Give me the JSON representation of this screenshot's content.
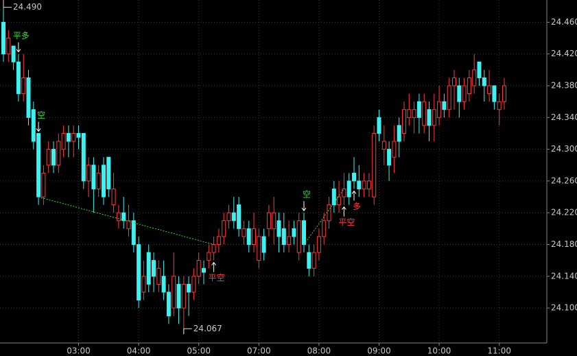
{
  "chart_data": {
    "type": "candlestick",
    "categories": [
      null,
      null,
      null,
      null,
      null,
      null,
      null,
      null,
      null,
      null,
      null,
      null,
      null,
      null,
      null,
      "03:00",
      null,
      null,
      null,
      null,
      null,
      null,
      null,
      null,
      null,
      null,
      null,
      "04:00",
      null,
      null,
      null,
      null,
      null,
      null,
      null,
      null,
      null,
      null,
      null,
      "05:00",
      null,
      null,
      null,
      null,
      null,
      null,
      null,
      null,
      null,
      null,
      null,
      "07:00",
      null,
      null,
      null,
      null,
      null,
      null,
      null,
      null,
      null,
      null,
      null,
      "08:00",
      null,
      null,
      null,
      null,
      null,
      null,
      null,
      null,
      null,
      null,
      null,
      "09:00",
      null,
      null,
      null,
      null,
      null,
      null,
      null,
      null,
      null,
      null,
      null,
      "10:00",
      null,
      null,
      null,
      null,
      null,
      null,
      null,
      null,
      null,
      null,
      null,
      "11:00",
      null
    ],
    "ohlc": [
      [
        24.46,
        24.49,
        24.41,
        24.42
      ],
      [
        24.42,
        24.45,
        24.41,
        24.44
      ],
      [
        24.43,
        24.43,
        24.4,
        24.41
      ],
      [
        24.41,
        24.42,
        24.36,
        24.37
      ],
      [
        24.37,
        24.42,
        24.36,
        24.39
      ],
      [
        24.39,
        24.4,
        24.33,
        24.34
      ],
      [
        24.35,
        24.36,
        24.3,
        24.31
      ],
      [
        24.32,
        24.32,
        24.23,
        24.24
      ],
      [
        24.24,
        24.28,
        24.23,
        24.27
      ],
      [
        24.28,
        24.31,
        24.27,
        24.3
      ],
      [
        24.3,
        24.31,
        24.27,
        24.28
      ],
      [
        24.28,
        24.32,
        24.27,
        24.31
      ],
      [
        24.3,
        24.33,
        24.29,
        24.32
      ],
      [
        24.32,
        24.33,
        24.29,
        24.31
      ],
      [
        24.31,
        24.33,
        24.29,
        24.32
      ],
      [
        24.32,
        24.33,
        24.3,
        24.315
      ],
      [
        24.32,
        24.32,
        24.25,
        24.26
      ],
      [
        24.26,
        24.29,
        24.24,
        24.28
      ],
      [
        24.28,
        24.29,
        24.22,
        24.25
      ],
      [
        24.25,
        24.28,
        24.24,
        24.27
      ],
      [
        24.28,
        24.29,
        24.23,
        24.24
      ],
      [
        24.29,
        24.29,
        24.24,
        24.25
      ],
      [
        24.23,
        24.27,
        24.22,
        24.25
      ],
      [
        24.21,
        24.23,
        24.2,
        24.22
      ],
      [
        24.22,
        24.24,
        24.2,
        24.21
      ],
      [
        24.2,
        24.23,
        24.19,
        24.21
      ],
      [
        24.21,
        24.22,
        24.17,
        24.18
      ],
      [
        24.18,
        24.19,
        24.1,
        24.11
      ],
      [
        24.12,
        24.16,
        24.11,
        24.14
      ],
      [
        24.17,
        24.18,
        24.12,
        24.13
      ],
      [
        24.16,
        24.17,
        24.12,
        24.14
      ],
      [
        24.13,
        24.16,
        24.12,
        24.15
      ],
      [
        24.14,
        24.16,
        24.11,
        24.12
      ],
      [
        24.12,
        24.13,
        24.08,
        24.09
      ],
      [
        24.1,
        24.17,
        24.09,
        24.14
      ],
      [
        24.13,
        24.14,
        24.08,
        24.1
      ],
      [
        24.1,
        24.14,
        24.067,
        24.13
      ],
      [
        24.13,
        24.14,
        24.09,
        24.12
      ],
      [
        24.12,
        24.15,
        24.11,
        24.14
      ],
      [
        24.14,
        24.17,
        24.13,
        24.16
      ],
      [
        24.15,
        24.16,
        24.13,
        24.145
      ],
      [
        24.16,
        24.18,
        24.15,
        24.17
      ],
      [
        24.17,
        24.19,
        24.16,
        24.18
      ],
      [
        24.18,
        24.2,
        24.17,
        24.19
      ],
      [
        24.19,
        24.22,
        24.18,
        24.21
      ],
      [
        24.21,
        24.23,
        24.2,
        24.22
      ],
      [
        24.22,
        24.24,
        24.2,
        24.21
      ],
      [
        24.23,
        24.24,
        24.19,
        24.2
      ],
      [
        24.19,
        24.21,
        24.18,
        24.2
      ],
      [
        24.2,
        24.21,
        24.17,
        24.18
      ],
      [
        24.18,
        24.22,
        24.17,
        24.2
      ],
      [
        24.16,
        24.2,
        24.15,
        24.19
      ],
      [
        24.19,
        24.2,
        24.16,
        24.17
      ],
      [
        24.2,
        24.23,
        24.19,
        24.22
      ],
      [
        24.2,
        24.24,
        24.18,
        24.22
      ],
      [
        24.21,
        24.22,
        24.17,
        24.19
      ],
      [
        24.2,
        24.22,
        24.17,
        24.18
      ],
      [
        24.18,
        24.21,
        24.17,
        24.19
      ],
      [
        24.2,
        24.21,
        24.18,
        24.19
      ],
      [
        24.17,
        24.22,
        24.16,
        24.21
      ],
      [
        24.21,
        24.22,
        24.17,
        24.18
      ],
      [
        24.17,
        24.18,
        24.14,
        24.15
      ],
      [
        24.15,
        24.18,
        24.14,
        24.17
      ],
      [
        24.17,
        24.2,
        24.16,
        24.19
      ],
      [
        24.19,
        24.22,
        24.18,
        24.21
      ],
      [
        24.21,
        24.24,
        24.2,
        24.23
      ],
      [
        24.25,
        24.26,
        24.22,
        24.23
      ],
      [
        24.23,
        24.26,
        24.22,
        24.24
      ],
      [
        24.24,
        24.27,
        24.23,
        24.25
      ],
      [
        24.26,
        24.27,
        24.23,
        24.24
      ],
      [
        24.27,
        24.29,
        24.25,
        24.26
      ],
      [
        24.26,
        24.28,
        24.24,
        24.25
      ],
      [
        24.25,
        24.27,
        24.24,
        24.26
      ],
      [
        24.25,
        24.27,
        24.24,
        24.26
      ],
      [
        24.24,
        24.33,
        24.23,
        24.32
      ],
      [
        24.34,
        24.35,
        24.31,
        24.32
      ],
      [
        24.3,
        24.33,
        24.28,
        24.31
      ],
      [
        24.3,
        24.31,
        24.26,
        24.28
      ],
      [
        24.29,
        24.33,
        24.27,
        24.31
      ],
      [
        24.33,
        24.34,
        24.29,
        24.31
      ],
      [
        24.32,
        24.36,
        24.31,
        24.35
      ],
      [
        24.34,
        24.37,
        24.33,
        24.35
      ],
      [
        24.34,
        24.36,
        24.32,
        24.35
      ],
      [
        24.36,
        24.37,
        24.32,
        24.34
      ],
      [
        24.33,
        24.37,
        24.32,
        24.36
      ],
      [
        24.35,
        24.36,
        24.31,
        24.33
      ],
      [
        24.33,
        24.37,
        24.31,
        24.35
      ],
      [
        24.34,
        24.38,
        24.33,
        24.36
      ],
      [
        24.36,
        24.37,
        24.34,
        24.35
      ],
      [
        24.35,
        24.39,
        24.34,
        24.38
      ],
      [
        24.38,
        24.4,
        24.35,
        24.39
      ],
      [
        24.38,
        24.39,
        24.34,
        24.36
      ],
      [
        24.36,
        24.39,
        24.35,
        24.38
      ],
      [
        24.37,
        24.4,
        24.36,
        24.39
      ],
      [
        24.38,
        24.42,
        24.37,
        24.4
      ],
      [
        24.41,
        24.41,
        24.38,
        24.39
      ],
      [
        24.39,
        24.4,
        24.36,
        24.38
      ],
      [
        24.37,
        24.4,
        24.36,
        24.38
      ],
      [
        24.38,
        24.38,
        24.35,
        24.36
      ],
      [
        24.35,
        24.37,
        24.33,
        24.36
      ],
      [
        24.36,
        24.39,
        24.35,
        24.38
      ]
    ],
    "up_color": "#ff3b3b",
    "down_color": "#3ff0f0",
    "ylim": [
      24.056,
      24.488
    ],
    "yticks": [
      {
        "value": 24.1,
        "label": "24.100"
      },
      {
        "value": 24.14,
        "label": "24.140"
      },
      {
        "value": 24.18,
        "label": "24.180"
      },
      {
        "value": 24.22,
        "label": "24.220"
      },
      {
        "value": 24.26,
        "label": "24.260"
      },
      {
        "value": 24.3,
        "label": "24.300"
      },
      {
        "value": 24.34,
        "label": "24.340"
      },
      {
        "value": 24.38,
        "label": "24.380"
      },
      {
        "value": 24.42,
        "label": "24.420"
      },
      {
        "value": 24.46,
        "label": "24.460"
      }
    ],
    "grid": true,
    "extremes": [
      {
        "value": 24.49,
        "label": "24.490"
      },
      {
        "value": 24.067,
        "label": "24.067"
      }
    ],
    "signals": [
      {
        "index": 3,
        "text": "平多",
        "color": "#33dd33",
        "side": "above"
      },
      {
        "index": 7,
        "text": "空",
        "color": "#33dd33",
        "side": "above"
      },
      {
        "index": 42,
        "text": "平空",
        "color": "#ff3b3b",
        "side": "below"
      },
      {
        "index": 60,
        "text": "空",
        "color": "#33dd33",
        "side": "above"
      },
      {
        "index": 68,
        "text": "平空",
        "color": "#ff3b3b",
        "side": "below"
      },
      {
        "index": 70,
        "text": "多",
        "color": "#ff3b3b",
        "side": "below"
      }
    ]
  }
}
